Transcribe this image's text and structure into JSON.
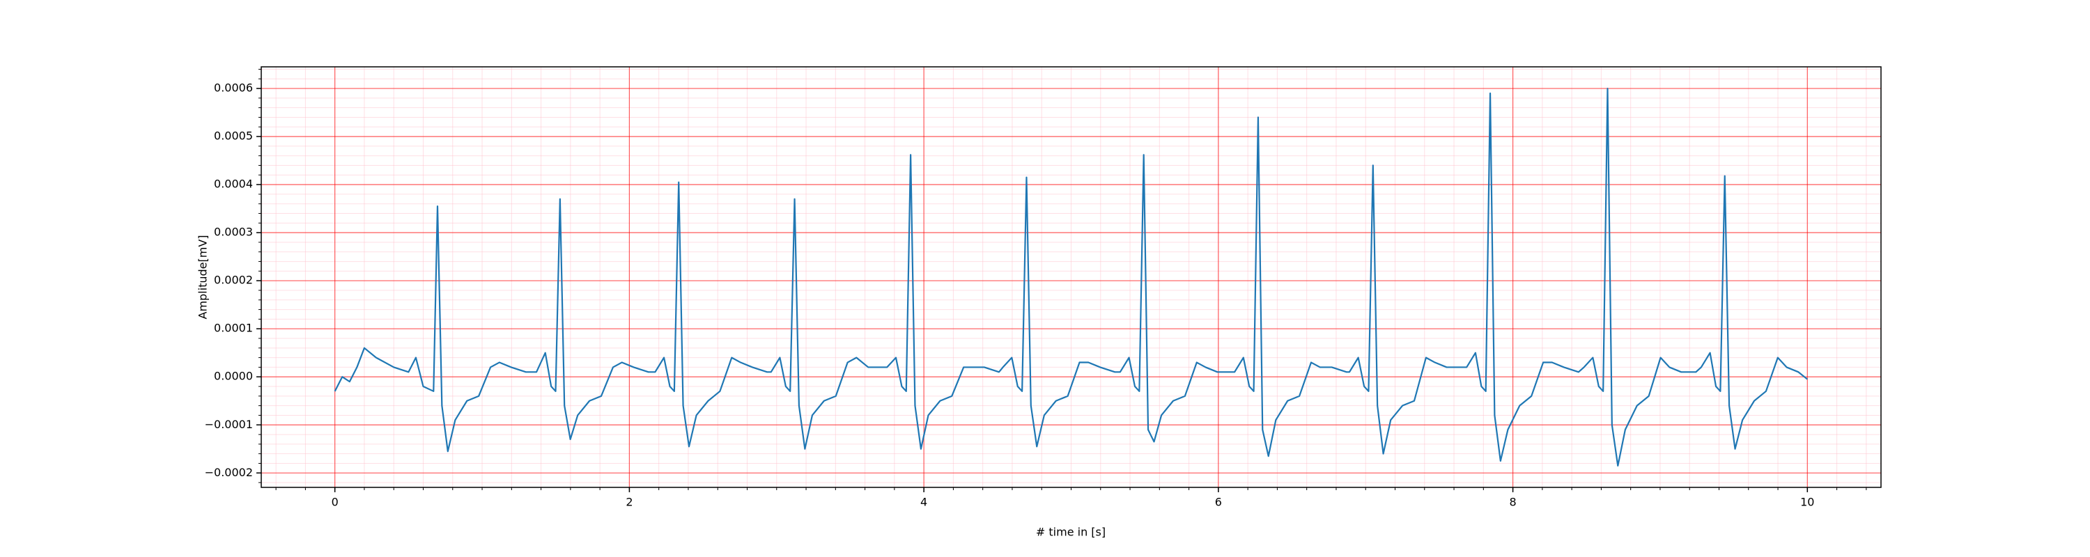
{
  "chart_data": {
    "type": "line",
    "x_label": "# time in [s]",
    "y_label": "Amplitude[mV]",
    "xlim": [
      -0.5,
      10.5
    ],
    "ylim": [
      -0.00023,
      0.000645
    ],
    "xticks": [
      0,
      2,
      4,
      6,
      8,
      10
    ],
    "yticks": [
      {
        "value": -0.0002,
        "label": "−0.0002"
      },
      {
        "value": -0.0001,
        "label": "−0.0001"
      },
      {
        "value": 0,
        "label": "0.0000"
      },
      {
        "value": 0.0001,
        "label": "0.0001"
      },
      {
        "value": 0.0002,
        "label": "0.0002"
      },
      {
        "value": 0.0003,
        "label": "0.0003"
      },
      {
        "value": 0.0004,
        "label": "0.0004"
      },
      {
        "value": 0.0005,
        "label": "0.0005"
      },
      {
        "value": 0.0006,
        "label": "0.0006"
      }
    ],
    "grid": true,
    "minor_grid": true,
    "grid_color": "#ff0000",
    "minor_grid_color": "#ffc0cb",
    "x": [
      0,
      0.05,
      0.1,
      0.15,
      0.2,
      0.28,
      0.4,
      0.5,
      0.55,
      0.6,
      0.67,
      0.697,
      0.727,
      0.767,
      0.817,
      0.897,
      0.977,
      1.057,
      1.117,
      1.197,
      1.297,
      1.369,
      1.429,
      1.469,
      1.499,
      1.529,
      1.559,
      1.599,
      1.649,
      1.729,
      1.809,
      1.889,
      1.949,
      2.029,
      2.129,
      2.175,
      2.235,
      2.275,
      2.305,
      2.335,
      2.365,
      2.405,
      2.455,
      2.535,
      2.615,
      2.695,
      2.755,
      2.835,
      2.935,
      2.962,
      3.022,
      3.062,
      3.092,
      3.122,
      3.152,
      3.192,
      3.242,
      3.322,
      3.402,
      3.482,
      3.542,
      3.622,
      3.722,
      3.75,
      3.81,
      3.85,
      3.88,
      3.91,
      3.94,
      3.98,
      4.03,
      4.11,
      4.19,
      4.27,
      4.33,
      4.41,
      4.51,
      4.537,
      4.597,
      4.637,
      4.667,
      4.697,
      4.727,
      4.767,
      4.817,
      4.897,
      4.977,
      5.057,
      5.117,
      5.197,
      5.297,
      5.333,
      5.393,
      5.433,
      5.463,
      5.493,
      5.523,
      5.563,
      5.613,
      5.693,
      5.773,
      5.853,
      5.913,
      5.993,
      6.093,
      6.11,
      6.17,
      6.21,
      6.24,
      6.27,
      6.3,
      6.34,
      6.39,
      6.47,
      6.55,
      6.63,
      6.69,
      6.77,
      6.87,
      6.89,
      6.95,
      6.99,
      7.02,
      7.05,
      7.08,
      7.12,
      7.17,
      7.25,
      7.33,
      7.41,
      7.47,
      7.55,
      7.65,
      7.686,
      7.746,
      7.786,
      7.816,
      7.846,
      7.876,
      7.916,
      7.966,
      8.046,
      8.126,
      8.206,
      8.266,
      8.346,
      8.446,
      8.483,
      8.543,
      8.583,
      8.613,
      8.643,
      8.673,
      8.713,
      8.763,
      8.843,
      8.923,
      9.003,
      9.063,
      9.143,
      9.243,
      9.279,
      9.339,
      9.379,
      9.409,
      9.439,
      9.469,
      9.509,
      9.559,
      9.639,
      9.719,
      9.799,
      9.859,
      9.939,
      10.0
    ],
    "series": [
      {
        "color": "#1f77b4",
        "values": [
          -3e-05,
          0.0,
          -1e-05,
          2e-05,
          6e-05,
          4e-05,
          2e-05,
          1e-05,
          4e-05,
          -2e-05,
          -3e-05,
          0.000355,
          -6e-05,
          -0.000155,
          -9e-05,
          -5e-05,
          -4e-05,
          2e-05,
          3e-05,
          2e-05,
          1e-05,
          1e-05,
          5e-05,
          -2e-05,
          -3e-05,
          0.00037,
          -6e-05,
          -0.00013,
          -8e-05,
          -5e-05,
          -4e-05,
          2e-05,
          3e-05,
          2e-05,
          1e-05,
          1e-05,
          4e-05,
          -2e-05,
          -3e-05,
          0.000405,
          -6e-05,
          -0.000145,
          -8e-05,
          -5e-05,
          -3e-05,
          4e-05,
          3e-05,
          2e-05,
          1e-05,
          1e-05,
          4e-05,
          -2e-05,
          -3e-05,
          0.00037,
          -6e-05,
          -0.00015,
          -8e-05,
          -5e-05,
          -4e-05,
          3e-05,
          4e-05,
          2e-05,
          2e-05,
          2e-05,
          4e-05,
          -2e-05,
          -3e-05,
          0.000462,
          -6e-05,
          -0.00015,
          -8e-05,
          -5e-05,
          -4e-05,
          2e-05,
          2e-05,
          2e-05,
          1e-05,
          2e-05,
          4e-05,
          -2e-05,
          -3e-05,
          0.000415,
          -6e-05,
          -0.000145,
          -8e-05,
          -5e-05,
          -4e-05,
          3e-05,
          3e-05,
          2e-05,
          1e-05,
          1e-05,
          4e-05,
          -2e-05,
          -3e-05,
          0.000462,
          -0.00011,
          -0.000135,
          -8e-05,
          -5e-05,
          -4e-05,
          3e-05,
          2e-05,
          1e-05,
          1e-05,
          1e-05,
          4e-05,
          -2e-05,
          -3e-05,
          0.00054,
          -0.00011,
          -0.000165,
          -9e-05,
          -5e-05,
          -4e-05,
          3e-05,
          2e-05,
          2e-05,
          1e-05,
          1e-05,
          4e-05,
          -2e-05,
          -3e-05,
          0.00044,
          -6e-05,
          -0.00016,
          -9e-05,
          -6e-05,
          -5e-05,
          4e-05,
          3e-05,
          2e-05,
          2e-05,
          2e-05,
          5e-05,
          -2e-05,
          -3e-05,
          0.00059,
          -8e-05,
          -0.000175,
          -0.00011,
          -6e-05,
          -4e-05,
          3e-05,
          3e-05,
          2e-05,
          1e-05,
          2e-05,
          4e-05,
          -2e-05,
          -3e-05,
          0.0006,
          -0.0001,
          -0.000185,
          -0.00011,
          -6e-05,
          -4e-05,
          4e-05,
          2e-05,
          1e-05,
          1e-05,
          2e-05,
          5e-05,
          -2e-05,
          -3e-05,
          0.000418,
          -6e-05,
          -0.00015,
          -9e-05,
          -5e-05,
          -3e-05,
          4e-05,
          2e-05,
          1e-05,
          -5e-06
        ]
      }
    ]
  }
}
